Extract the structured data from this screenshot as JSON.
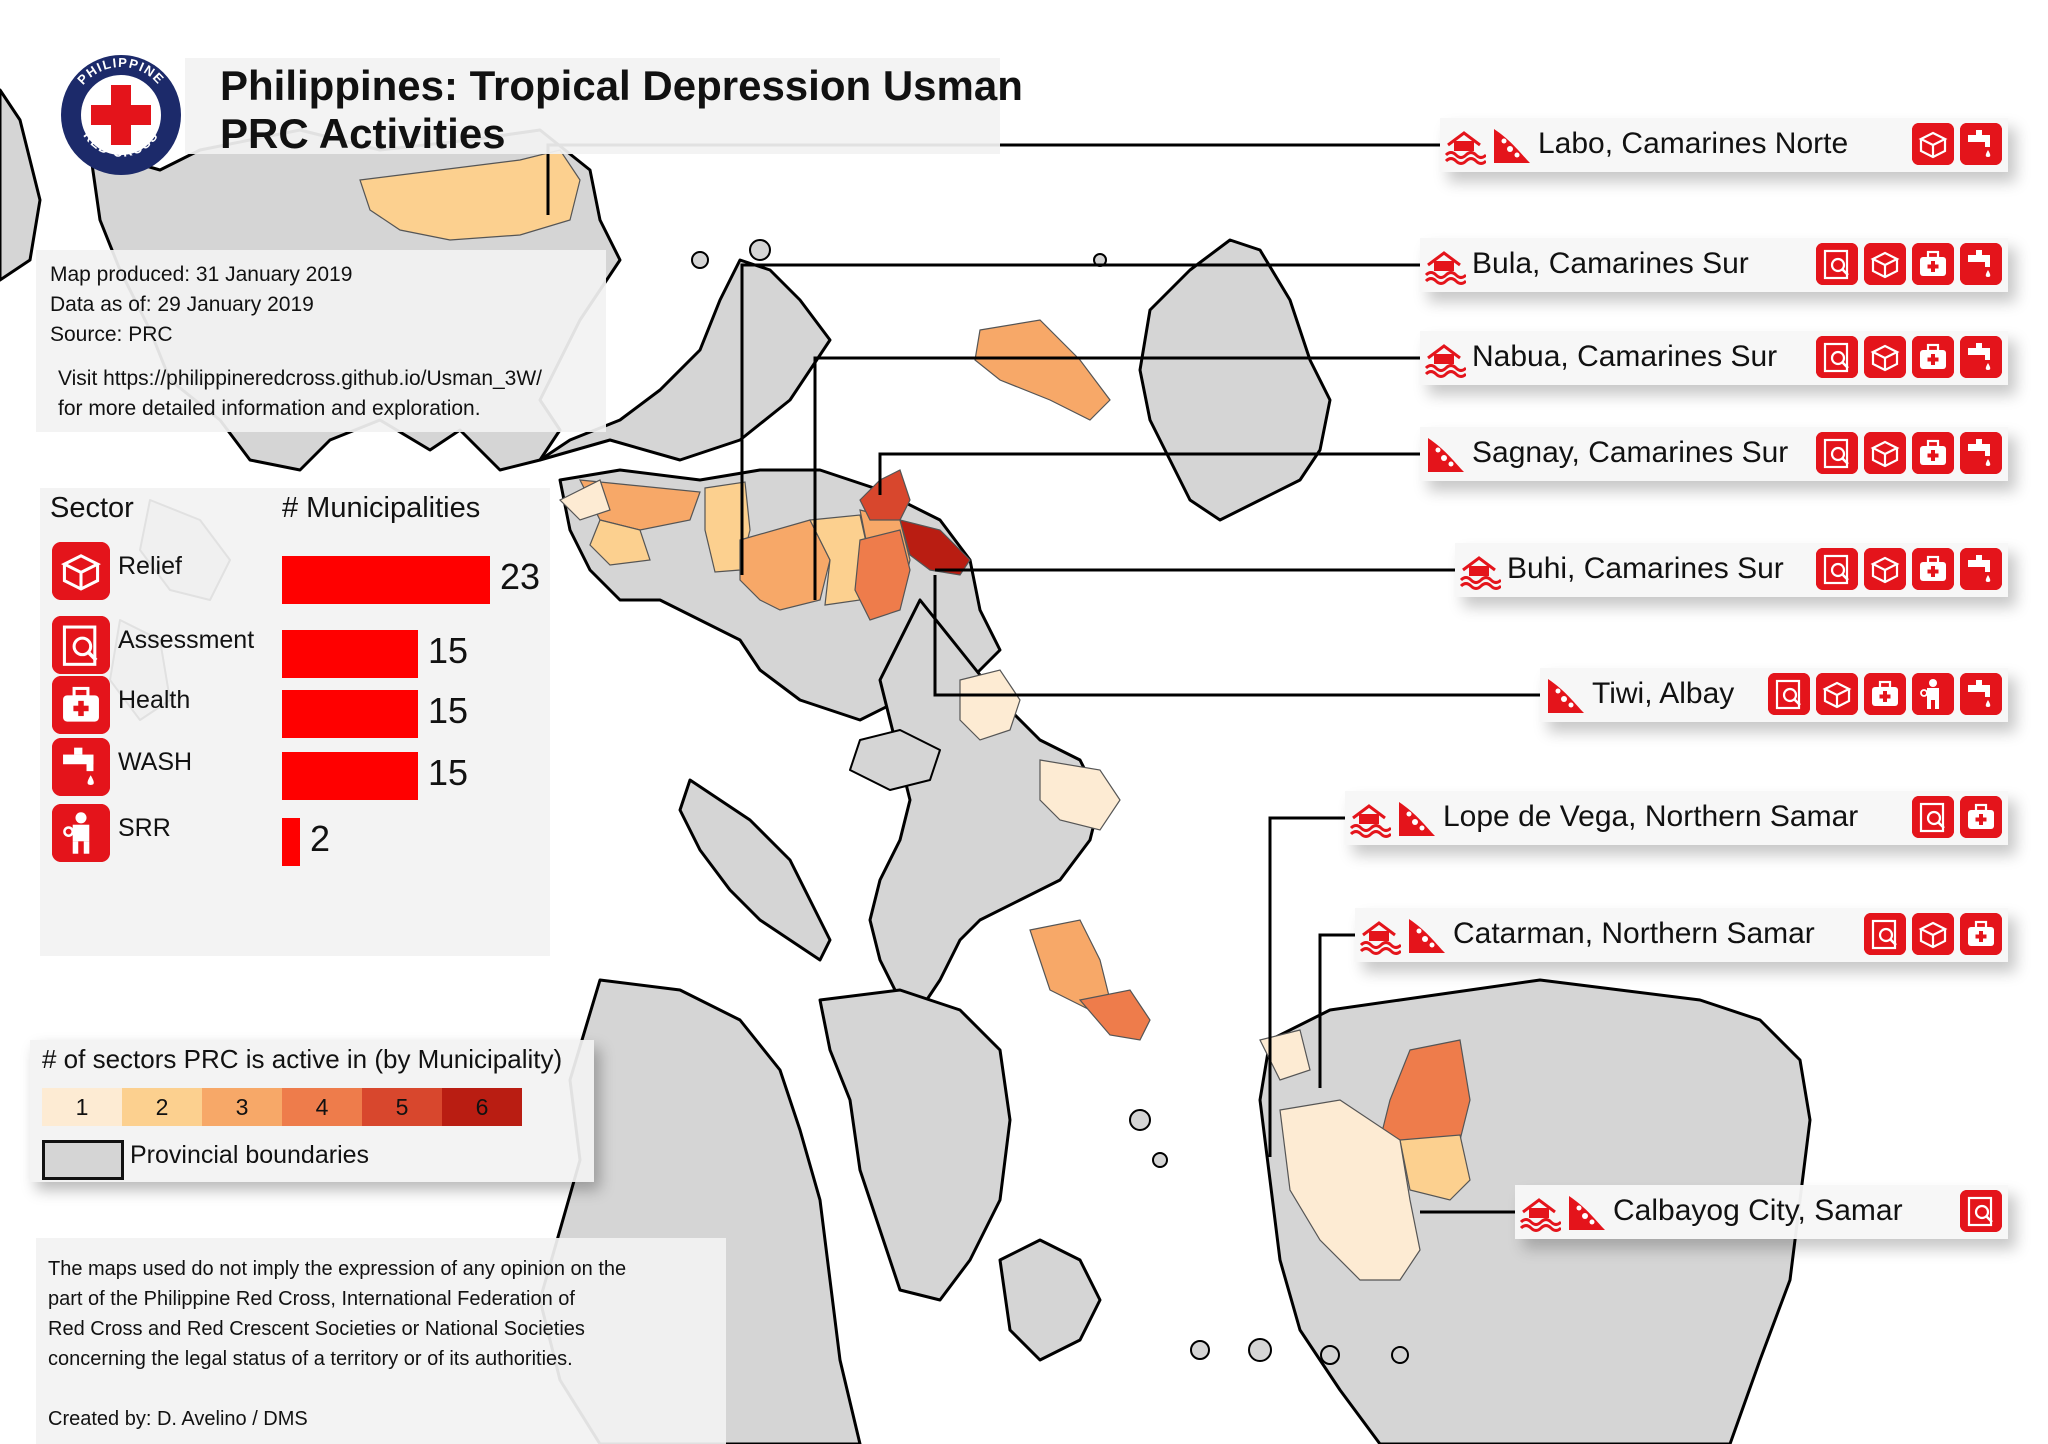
{
  "title": {
    "line1": "Philippines: Tropical Depression Usman",
    "line2": "PRC Activities"
  },
  "logo": {
    "name": "Philippine Red Cross",
    "text_top": "PHILIPPINE",
    "text_bottom": "RED CROSS",
    "color": "#e4141b"
  },
  "info": {
    "produced": "Map produced: 31 January 2019",
    "data_asof": "Data as of: 29 January 2019",
    "source": "Source: PRC",
    "visit1": "Visit https://philippineredcross.github.io/Usman_3W/",
    "visit2": "for more detailed information and exploration."
  },
  "sectors": {
    "header_sector": "Sector",
    "header_count": "# Municipalities",
    "max": 23,
    "items": [
      {
        "label": "Relief",
        "value": 23,
        "icon": "relief-box-icon"
      },
      {
        "label": "Assessment",
        "value": 15,
        "icon": "assessment-icon"
      },
      {
        "label": "Health",
        "value": 15,
        "icon": "health-kit-icon"
      },
      {
        "label": "WASH",
        "value": 15,
        "icon": "water-tap-icon"
      },
      {
        "label": "SRR",
        "value": 2,
        "icon": "rescue-person-icon"
      }
    ]
  },
  "legend": {
    "title": "# of sectors PRC is active in (by Municipality)",
    "classes": [
      {
        "label": "1",
        "color": "#fdebd3"
      },
      {
        "label": "2",
        "color": "#fcd08f"
      },
      {
        "label": "3",
        "color": "#f7a868"
      },
      {
        "label": "4",
        "color": "#ee7c4b"
      },
      {
        "label": "5",
        "color": "#d8472d"
      },
      {
        "label": "6",
        "color": "#b91d12"
      }
    ],
    "boundaries_label": "Provincial boundaries"
  },
  "disclaimer": {
    "lines": [
      "The maps used do not imply the expression of any opinion on the",
      "part of the Philippine Red Cross, International Federation of",
      "Red Cross and Red Crescent Societies or National Societies",
      "concerning the legal status of a territory or of its authorities."
    ],
    "credit": "Created by: D. Avelino / DMS"
  },
  "callouts": [
    {
      "name": "Labo, Camarines Norte",
      "hazards": [
        "flood-icon",
        "landslide-icon"
      ],
      "activities": [
        "relief-box-icon",
        "water-tap-icon"
      ]
    },
    {
      "name": "Bula, Camarines Sur",
      "hazards": [
        "flood-icon"
      ],
      "activities": [
        "assessment-icon",
        "relief-box-icon",
        "health-kit-icon",
        "water-tap-icon"
      ]
    },
    {
      "name": "Nabua, Camarines Sur",
      "hazards": [
        "flood-icon"
      ],
      "activities": [
        "assessment-icon",
        "relief-box-icon",
        "health-kit-icon",
        "water-tap-icon"
      ]
    },
    {
      "name": "Sagnay, Camarines Sur",
      "hazards": [
        "landslide-icon"
      ],
      "activities": [
        "assessment-icon",
        "relief-box-icon",
        "health-kit-icon",
        "water-tap-icon"
      ]
    },
    {
      "name": "Buhi, Camarines Sur",
      "hazards": [
        "flood-icon"
      ],
      "activities": [
        "assessment-icon",
        "relief-box-icon",
        "health-kit-icon",
        "water-tap-icon"
      ]
    },
    {
      "name": "Tiwi, Albay",
      "hazards": [
        "landslide-icon"
      ],
      "activities": [
        "assessment-icon",
        "relief-box-icon",
        "health-kit-icon",
        "rescue-person-icon",
        "water-tap-icon"
      ]
    },
    {
      "name": "Lope de Vega, Northern Samar",
      "hazards": [
        "flood-icon",
        "landslide-icon"
      ],
      "activities": [
        "assessment-icon",
        "health-kit-icon"
      ]
    },
    {
      "name": "Catarman, Northern Samar",
      "hazards": [
        "flood-icon",
        "landslide-icon"
      ],
      "activities": [
        "assessment-icon",
        "relief-box-icon",
        "health-kit-icon"
      ]
    },
    {
      "name": "Calbayog City, Samar",
      "hazards": [
        "flood-icon",
        "landslide-icon"
      ],
      "activities": [
        "assessment-icon"
      ]
    }
  ]
}
